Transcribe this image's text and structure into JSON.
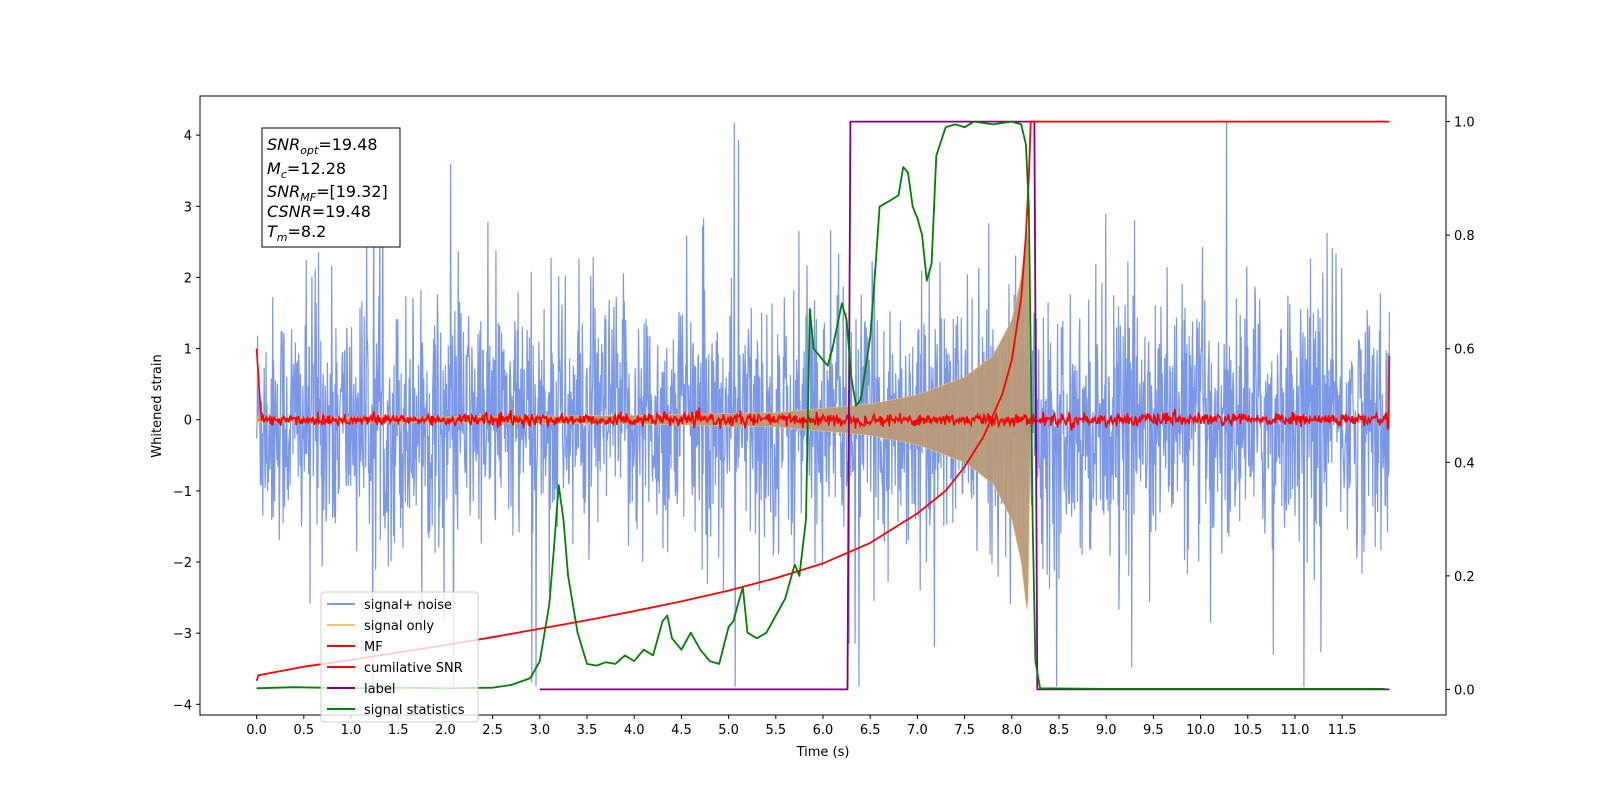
{
  "chart_data": {
    "type": "line",
    "xlabel": "Time (s)",
    "ylabel": "Whitened strain",
    "xlim": [
      -0.6,
      12.6
    ],
    "ylim": [
      -4.15,
      4.55
    ],
    "y2lim": [
      -0.045,
      1.045
    ],
    "x_ticks": [
      0.0,
      0.5,
      1.0,
      1.5,
      2.0,
      2.5,
      3.0,
      3.5,
      4.0,
      4.5,
      5.0,
      5.5,
      6.0,
      6.5,
      7.0,
      7.5,
      8.0,
      8.5,
      9.0,
      9.5,
      10.0,
      10.5,
      11.0,
      11.5
    ],
    "x_tick_labels": [
      "0.0",
      "0.5",
      "1.0",
      "1.5",
      "2.0",
      "2.5",
      "3.0",
      "3.5",
      "4.0",
      "4.5",
      "5.0",
      "5.5",
      "6.0",
      "6.5",
      "7.0",
      "7.5",
      "8.0",
      "8.5",
      "9.0",
      "9.5",
      "10.0",
      "10.5",
      "11.0",
      "11.5"
    ],
    "y_ticks": [
      -4,
      -3,
      -2,
      -1,
      0,
      1,
      2,
      3,
      4
    ],
    "y_tick_labels": [
      "−4",
      "−3",
      "−2",
      "−1",
      "0",
      "1",
      "2",
      "3",
      "4"
    ],
    "y2_ticks": [
      0.0,
      0.2,
      0.4,
      0.6,
      0.8,
      1.0
    ],
    "y2_tick_labels": [
      "0.0",
      "0.2",
      "0.4",
      "0.6",
      "0.8",
      "1.0"
    ],
    "colors": {
      "signal_noise": "#7b97e8",
      "signal_only": "#f2c46b",
      "signal_only_overlap": "#b89a7a",
      "mf": "#ff0000",
      "cumulative_snr": "#ff0000",
      "label": "#800080",
      "signal_statistics": "#008000"
    },
    "annotation": {
      "lines": [
        {
          "main": "SNR",
          "sub": "opt",
          "rest": "=19.48"
        },
        {
          "main": "M",
          "sub": "c",
          "rest": "=12.28"
        },
        {
          "main": "SNR",
          "sub": "MF",
          "rest": "=[19.32]"
        },
        {
          "main": "CSNR",
          "sub": "",
          "rest": "=19.48"
        },
        {
          "main": "T",
          "sub": "m",
          "rest": "=8.2"
        }
      ]
    },
    "legend": {
      "placement": "lower-left",
      "entries": [
        "signal+ noise",
        "signal only",
        "MF",
        "cumilative SNR",
        "label",
        "signal statistics"
      ]
    },
    "series": [
      {
        "key": "signal_noise",
        "axis": "left",
        "x_range": [
          0.0,
          12.0
        ],
        "noise_sigma": 1.0,
        "peak_max": 4.18,
        "peak_min": -3.75
      },
      {
        "key": "signal_only",
        "axis": "left",
        "x_range": [
          0.0,
          8.2
        ],
        "envelope": [
          [
            0.0,
            0.03
          ],
          [
            2.0,
            0.04
          ],
          [
            4.0,
            0.06
          ],
          [
            5.5,
            0.1
          ],
          [
            6.5,
            0.22
          ],
          [
            7.0,
            0.35
          ],
          [
            7.5,
            0.6
          ],
          [
            7.8,
            0.9
          ],
          [
            8.0,
            1.4
          ],
          [
            8.1,
            2.0
          ],
          [
            8.17,
            2.8
          ],
          [
            8.2,
            0.0
          ]
        ]
      },
      {
        "key": "mf",
        "axis": "left",
        "x_range": [
          0.0,
          12.0
        ],
        "noise_sigma": 0.045,
        "edge_start": 1.0,
        "edge_end": 0.9
      },
      {
        "key": "cumulative_snr",
        "axis": "right",
        "points": [
          [
            0.0,
            0.015
          ],
          [
            0.02,
            0.025
          ],
          [
            0.5,
            0.04
          ],
          [
            1.0,
            0.052
          ],
          [
            1.5,
            0.065
          ],
          [
            2.0,
            0.078
          ],
          [
            2.5,
            0.092
          ],
          [
            3.0,
            0.107
          ],
          [
            3.5,
            0.122
          ],
          [
            4.0,
            0.138
          ],
          [
            4.5,
            0.155
          ],
          [
            5.0,
            0.174
          ],
          [
            5.5,
            0.196
          ],
          [
            6.0,
            0.222
          ],
          [
            6.5,
            0.258
          ],
          [
            7.0,
            0.31
          ],
          [
            7.3,
            0.35
          ],
          [
            7.5,
            0.392
          ],
          [
            7.7,
            0.445
          ],
          [
            7.9,
            0.52
          ],
          [
            8.0,
            0.58
          ],
          [
            8.1,
            0.69
          ],
          [
            8.15,
            0.8
          ],
          [
            8.18,
            0.9
          ],
          [
            8.2,
            1.0
          ],
          [
            12.0,
            1.0
          ]
        ]
      },
      {
        "key": "label",
        "axis": "right",
        "points": [
          [
            3.0,
            0.0
          ],
          [
            6.26,
            0.0
          ],
          [
            6.29,
            1.0
          ],
          [
            8.24,
            1.0
          ],
          [
            8.27,
            0.0
          ],
          [
            12.0,
            0.0
          ]
        ]
      },
      {
        "key": "signal_statistics",
        "axis": "right",
        "points": [
          [
            0.0,
            0.002
          ],
          [
            0.4,
            0.004
          ],
          [
            1.0,
            0.002
          ],
          [
            1.5,
            0.003
          ],
          [
            2.0,
            0.002
          ],
          [
            2.5,
            0.003
          ],
          [
            2.7,
            0.008
          ],
          [
            2.9,
            0.02
          ],
          [
            3.0,
            0.05
          ],
          [
            3.1,
            0.15
          ],
          [
            3.15,
            0.25
          ],
          [
            3.2,
            0.36
          ],
          [
            3.25,
            0.3
          ],
          [
            3.3,
            0.2
          ],
          [
            3.4,
            0.1
          ],
          [
            3.5,
            0.045
          ],
          [
            3.6,
            0.042
          ],
          [
            3.7,
            0.048
          ],
          [
            3.8,
            0.045
          ],
          [
            3.9,
            0.06
          ],
          [
            4.0,
            0.05
          ],
          [
            4.1,
            0.07
          ],
          [
            4.2,
            0.06
          ],
          [
            4.3,
            0.12
          ],
          [
            4.35,
            0.13
          ],
          [
            4.4,
            0.09
          ],
          [
            4.5,
            0.07
          ],
          [
            4.55,
            0.085
          ],
          [
            4.6,
            0.1
          ],
          [
            4.7,
            0.07
          ],
          [
            4.8,
            0.05
          ],
          [
            4.9,
            0.045
          ],
          [
            5.0,
            0.11
          ],
          [
            5.05,
            0.12
          ],
          [
            5.1,
            0.15
          ],
          [
            5.15,
            0.18
          ],
          [
            5.2,
            0.1
          ],
          [
            5.3,
            0.09
          ],
          [
            5.4,
            0.1
          ],
          [
            5.5,
            0.13
          ],
          [
            5.6,
            0.16
          ],
          [
            5.7,
            0.22
          ],
          [
            5.75,
            0.2
          ],
          [
            5.82,
            0.3
          ],
          [
            5.86,
            0.67
          ],
          [
            5.9,
            0.6
          ],
          [
            6.0,
            0.58
          ],
          [
            6.05,
            0.57
          ],
          [
            6.1,
            0.6
          ],
          [
            6.15,
            0.64
          ],
          [
            6.2,
            0.68
          ],
          [
            6.25,
            0.65
          ],
          [
            6.3,
            0.55
          ],
          [
            6.35,
            0.5
          ],
          [
            6.4,
            0.51
          ],
          [
            6.5,
            0.62
          ],
          [
            6.55,
            0.73
          ],
          [
            6.6,
            0.85
          ],
          [
            6.7,
            0.86
          ],
          [
            6.8,
            0.87
          ],
          [
            6.85,
            0.92
          ],
          [
            6.9,
            0.91
          ],
          [
            6.95,
            0.85
          ],
          [
            7.0,
            0.83
          ],
          [
            7.05,
            0.8
          ],
          [
            7.1,
            0.72
          ],
          [
            7.15,
            0.75
          ],
          [
            7.2,
            0.94
          ],
          [
            7.3,
            0.99
          ],
          [
            7.4,
            0.995
          ],
          [
            7.5,
            0.99
          ],
          [
            7.6,
            1.0
          ],
          [
            7.8,
            0.995
          ],
          [
            8.0,
            1.0
          ],
          [
            8.1,
            0.995
          ],
          [
            8.15,
            0.96
          ],
          [
            8.18,
            0.85
          ],
          [
            8.2,
            0.6
          ],
          [
            8.22,
            0.3
          ],
          [
            8.25,
            0.05
          ],
          [
            8.3,
            0.002
          ],
          [
            9.0,
            0.001
          ],
          [
            10.0,
            0.001
          ],
          [
            11.0,
            0.001
          ],
          [
            11.95,
            0.001
          ]
        ]
      }
    ]
  }
}
